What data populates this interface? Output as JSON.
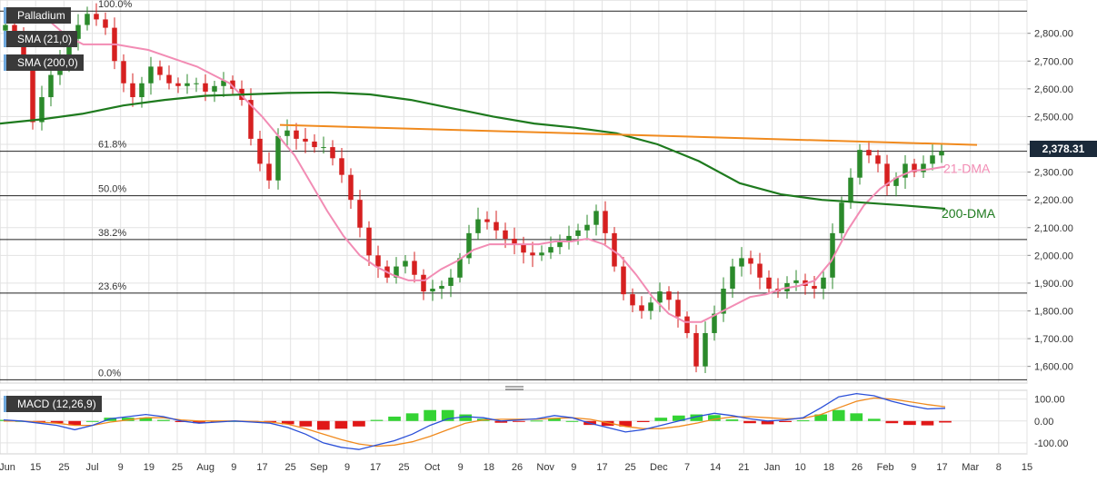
{
  "legends": {
    "instrument": "Palladium",
    "sma21": "SMA (21,0)",
    "sma200": "SMA (200,0)",
    "macd": "MACD (12,26,9)"
  },
  "last_price_label": "2,378.31",
  "colors": {
    "up": "#2b8a2b",
    "down": "#d62020",
    "sma21": "#f28cb4",
    "sma200": "#1e7a1e",
    "trend": "#f08a1e",
    "macd": "#2a4fd8",
    "signal": "#f08a1e",
    "hist_up": "#34d334",
    "hist_down": "#e01818",
    "grid": "#e3e3e3"
  },
  "chart_data": [
    {
      "type": "candlestick",
      "title": "Palladium",
      "y_ticks": [
        "2,800.00",
        "2,700.00",
        "2,600.00",
        "2,500.00",
        "2,400.00",
        "2,300.00",
        "2,200.00",
        "2,100.00",
        "2,000.00",
        "1,900.00",
        "1,800.00",
        "1,700.00",
        "1,600.00"
      ],
      "y_tick_values": [
        2800,
        2700,
        2600,
        2500,
        2400,
        2300,
        2200,
        2100,
        2000,
        1900,
        1800,
        1700,
        1600
      ],
      "ylim": [
        1540,
        2920
      ],
      "x_ticks": [
        "Jun",
        "15",
        "25",
        "Jul",
        "9",
        "19",
        "25",
        "Aug",
        "9",
        "17",
        "25",
        "Sep",
        "9",
        "17",
        "25",
        "Oct",
        "9",
        "18",
        "26",
        "Nov",
        "9",
        "17",
        "25",
        "Dec",
        "7",
        "14",
        "21",
        "Jan",
        "10",
        "18",
        "26",
        "Feb",
        "9",
        "17",
        "Mar",
        "8",
        "15"
      ],
      "fibonacci": [
        {
          "label": "100.0%",
          "value": 2880
        },
        {
          "label": "61.8%",
          "value": 2375
        },
        {
          "label": "50.0%",
          "value": 2215
        },
        {
          "label": "38.2%",
          "value": 2057
        },
        {
          "label": "23.6%",
          "value": 1864
        },
        {
          "label": "0.0%",
          "value": 1552
        }
      ],
      "annotations": [
        "21-DMA",
        "200-DMA"
      ],
      "trendline": {
        "from": [
          2470
        ],
        "to": [
          2398
        ]
      },
      "close_path": [
        2830,
        2780,
        2690,
        2480,
        2570,
        2650,
        2700,
        2780,
        2830,
        2870,
        2850,
        2820,
        2700,
        2620,
        2570,
        2620,
        2680,
        2650,
        2620,
        2610,
        2620,
        2620,
        2590,
        2610,
        2630,
        2600,
        2560,
        2420,
        2330,
        2270,
        2430,
        2450,
        2420,
        2410,
        2390,
        2390,
        2350,
        2290,
        2200,
        2100,
        2000,
        1960,
        1920,
        1960,
        1980,
        1930,
        1870,
        1880,
        1890,
        1920,
        1990,
        2080,
        2130,
        2120,
        2090,
        2060,
        2040,
        2010,
        2000,
        2010,
        2030,
        2050,
        2070,
        2090,
        2110,
        2160,
        2080,
        1960,
        1860,
        1820,
        1800,
        1830,
        1870,
        1840,
        1780,
        1720,
        1600,
        1720,
        1790,
        1880,
        1960,
        1990,
        1970,
        1920,
        1880,
        1870,
        1900,
        1910,
        1890,
        1880,
        1920,
        2080,
        2190,
        2280,
        2380,
        2360,
        2330,
        2250,
        2280,
        2330,
        2300,
        2330,
        2360,
        2375
      ],
      "sma21": [
        2880,
        2860,
        2840,
        2790,
        2760,
        2760,
        2760,
        2750,
        2740,
        2720,
        2700,
        2680,
        2650,
        2620,
        2560,
        2500,
        2430,
        2360,
        2260,
        2160,
        2070,
        2000,
        1960,
        1930,
        1910,
        1910,
        1950,
        1980,
        2020,
        2040,
        2040,
        2040,
        2040,
        2050,
        2050,
        2060,
        2040,
        2000,
        1930,
        1850,
        1790,
        1760,
        1760,
        1790,
        1820,
        1850,
        1860,
        1880,
        1890,
        1910,
        1980,
        2090,
        2180,
        2240,
        2280,
        2305,
        2310,
        2320
      ],
      "sma200": [
        2475,
        2490,
        2510,
        2540,
        2560,
        2575,
        2580,
        2585,
        2587,
        2580,
        2560,
        2530,
        2500,
        2475,
        2460,
        2440,
        2400,
        2340,
        2260,
        2220,
        2200,
        2190,
        2180,
        2168
      ],
      "price_label": "2,378.31"
    },
    {
      "type": "histogram+line",
      "title": "MACD (12,26,9)",
      "y_ticks": [
        "100.00",
        "0.00",
        "-100.00"
      ],
      "y_tick_values": [
        100,
        0,
        -100
      ],
      "ylim": [
        -150,
        140
      ],
      "macd": [
        5,
        0,
        -10,
        -20,
        -40,
        -20,
        10,
        20,
        30,
        20,
        0,
        -10,
        -5,
        0,
        -5,
        -10,
        -30,
        -60,
        -100,
        -120,
        -130,
        -110,
        -90,
        -60,
        -20,
        10,
        20,
        15,
        0,
        5,
        10,
        25,
        15,
        -10,
        -30,
        -50,
        -40,
        -20,
        0,
        20,
        35,
        25,
        10,
        0,
        5,
        15,
        60,
        110,
        125,
        115,
        90,
        70,
        55,
        58
      ],
      "signal": [
        0,
        0,
        -5,
        -10,
        -20,
        -20,
        -5,
        5,
        15,
        15,
        5,
        0,
        0,
        0,
        -2,
        -5,
        -15,
        -35,
        -60,
        -85,
        -105,
        -115,
        -110,
        -95,
        -70,
        -40,
        -10,
        5,
        8,
        8,
        8,
        12,
        15,
        8,
        -8,
        -25,
        -35,
        -35,
        -25,
        -10,
        8,
        18,
        20,
        15,
        10,
        12,
        30,
        60,
        90,
        105,
        100,
        88,
        75,
        65
      ],
      "histogram": [
        5,
        0,
        -5,
        -10,
        -20,
        0,
        15,
        15,
        15,
        5,
        -5,
        -10,
        -5,
        0,
        -3,
        -5,
        -15,
        -25,
        -40,
        -35,
        -25,
        5,
        20,
        35,
        50,
        50,
        30,
        10,
        -8,
        -3,
        2,
        13,
        0,
        -18,
        -22,
        -25,
        -5,
        15,
        25,
        30,
        27,
        7,
        -10,
        -15,
        -5,
        3,
        30,
        50,
        35,
        10,
        -10,
        -18,
        -20,
        -7
      ]
    }
  ]
}
